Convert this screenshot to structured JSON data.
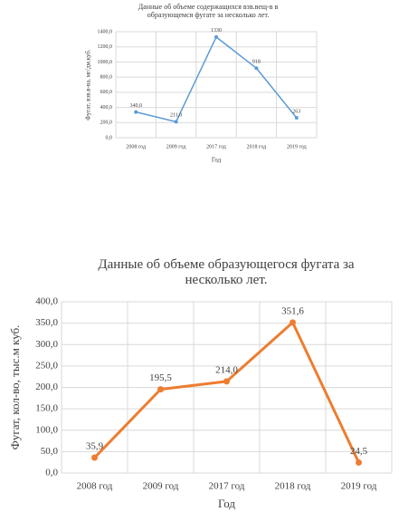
{
  "chart_data": [
    {
      "type": "line",
      "title": "Данные об объеме содержащихся взв.вещ-в в образующемся фугате за несколько лет.",
      "x_label": "Год",
      "y_label": "Фугат, взв.в-ва, мг/дм.куб.",
      "categories": [
        "2008 год",
        "2009 год",
        "2017 год",
        "2018 год",
        "2019 год"
      ],
      "values": [
        340,
        211,
        1330,
        918,
        263
      ],
      "value_labels": [
        "340,0",
        "211,0",
        "1330",
        "918",
        "263"
      ],
      "color": "#5b9bd5",
      "ylim": [
        0,
        1400
      ],
      "yticks": [
        {
          "value": 0,
          "label": "0,0"
        },
        {
          "value": 200,
          "label": "200,0"
        },
        {
          "value": 400,
          "label": "400,0"
        },
        {
          "value": 600,
          "label": "600,0"
        },
        {
          "value": 800,
          "label": "800,0"
        },
        {
          "value": 1000,
          "label": "1000,0"
        },
        {
          "value": 1200,
          "label": "1200,0"
        },
        {
          "value": 1400,
          "label": "1400,0"
        }
      ],
      "grid": true
    },
    {
      "type": "line",
      "title": "Данные об объеме образующегося фугата за несколько лет.",
      "x_label": "Год",
      "y_label": "Фугат, кол-во, тыс.м куб.",
      "categories": [
        "2008 год",
        "2009 год",
        "2017 год",
        "2018 год",
        "2019 год"
      ],
      "values": [
        35.9,
        195.5,
        214,
        351.6,
        24.5
      ],
      "value_labels": [
        "35,9",
        "195,5",
        "214,0",
        "351,6",
        "24,5"
      ],
      "color": "#ed7d31",
      "ylim": [
        0,
        400
      ],
      "yticks": [
        {
          "value": 0,
          "label": "0,0"
        },
        {
          "value": 50,
          "label": "50,0"
        },
        {
          "value": 100,
          "label": "100,0"
        },
        {
          "value": 150,
          "label": "150,0"
        },
        {
          "value": 200,
          "label": "200,0"
        },
        {
          "value": 250,
          "label": "250,0"
        },
        {
          "value": 300,
          "label": "300,0"
        },
        {
          "value": 350,
          "label": "350,0"
        },
        {
          "value": 400,
          "label": "400,0"
        }
      ],
      "grid": true
    }
  ]
}
